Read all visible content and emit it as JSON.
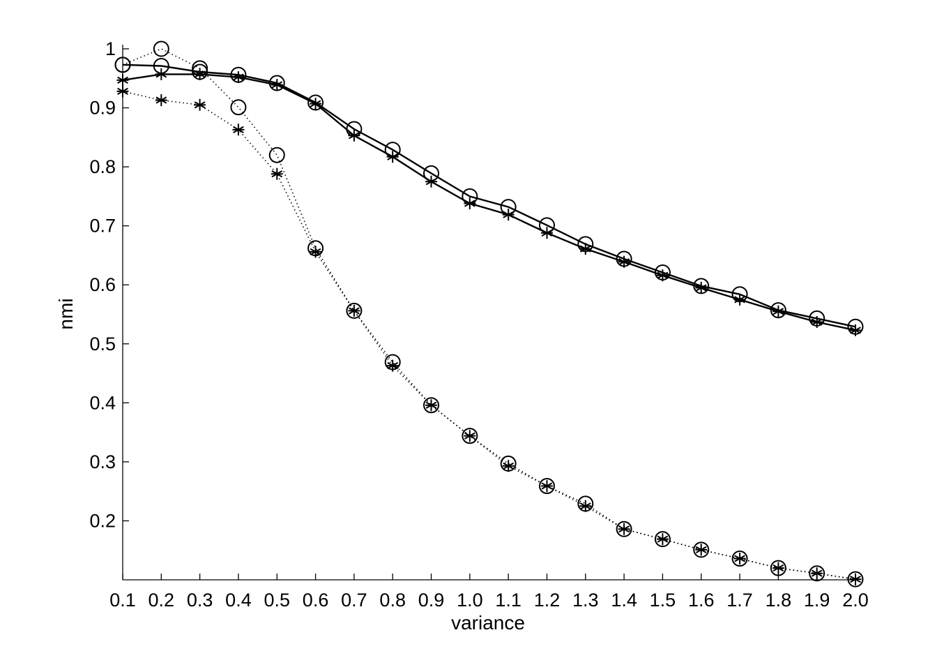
{
  "chart_data": {
    "type": "line",
    "title": "",
    "xlabel": "variance",
    "ylabel": "nmi",
    "xlim": [
      0.1,
      2.0
    ],
    "ylim": [
      0.1,
      1.0
    ],
    "x": [
      0.1,
      0.2,
      0.3,
      0.4,
      0.5,
      0.6,
      0.7,
      0.8,
      0.9,
      1.0,
      1.1,
      1.2,
      1.3,
      1.4,
      1.5,
      1.6,
      1.7,
      1.8,
      1.9,
      2.0
    ],
    "x_tick_labels": [
      "0.1",
      "0.2",
      "0.3",
      "0.4",
      "0.5",
      "0.6",
      "0.7",
      "0.8",
      "0.9",
      "1.0",
      "1.1",
      "1.2",
      "1.3",
      "1.4",
      "1.5",
      "1.6",
      "1.7",
      "1.8",
      "1.9",
      "2.0"
    ],
    "y_ticks": [
      0.2,
      0.3,
      0.4,
      0.5,
      0.6,
      0.7,
      0.8,
      0.9,
      1.0
    ],
    "y_tick_labels": [
      "0.2",
      "0.3",
      "0.4",
      "0.5",
      "0.6",
      "0.7",
      "0.8",
      "0.9",
      "1"
    ],
    "grid": false,
    "legend": "none",
    "series": [
      {
        "marker": "circle",
        "linestyle": "solid",
        "color": "#000000",
        "values": [
          0.973,
          0.971,
          0.961,
          0.956,
          0.942,
          0.909,
          0.864,
          0.829,
          0.789,
          0.75,
          0.732,
          0.701,
          0.669,
          0.644,
          0.621,
          0.598,
          0.584,
          0.557,
          0.543,
          0.529
        ]
      },
      {
        "marker": "asterisk",
        "linestyle": "solid",
        "color": "#000000",
        "values": [
          0.947,
          0.957,
          0.957,
          0.952,
          0.939,
          0.907,
          0.853,
          0.817,
          0.775,
          0.738,
          0.719,
          0.688,
          0.661,
          0.639,
          0.616,
          0.595,
          0.575,
          0.555,
          0.537,
          0.523
        ]
      },
      {
        "marker": "circle",
        "linestyle": "dotted",
        "color": "#000000",
        "values": [
          0.973,
          1.0,
          0.967,
          0.901,
          0.82,
          0.662,
          0.556,
          0.469,
          0.396,
          0.344,
          0.297,
          0.259,
          0.229,
          0.186,
          0.169,
          0.151,
          0.136,
          0.12,
          0.111,
          0.101
        ]
      },
      {
        "marker": "asterisk",
        "linestyle": "dotted",
        "color": "#000000",
        "values": [
          0.928,
          0.913,
          0.905,
          0.863,
          0.788,
          0.656,
          0.556,
          0.463,
          0.396,
          0.344,
          0.293,
          0.259,
          0.225,
          0.186,
          0.169,
          0.151,
          0.136,
          0.12,
          0.111,
          0.101
        ]
      }
    ]
  }
}
